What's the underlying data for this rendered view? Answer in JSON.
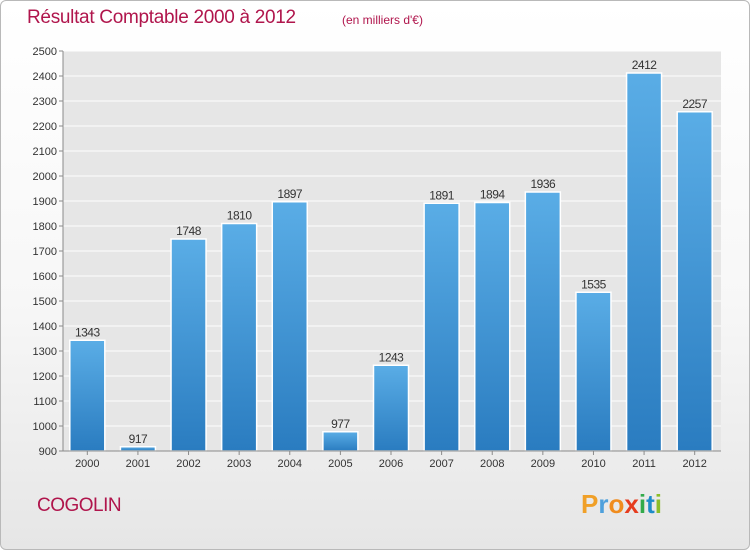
{
  "title": "Résultat Comptable 2000 à 2012",
  "subtitle": "(en milliers d'€)",
  "commune": "COGOLIN",
  "logo": {
    "letters": [
      "P",
      "r",
      "o",
      "x",
      "i",
      "t",
      "i"
    ],
    "colors": [
      "#f0a028",
      "#4ea0dc",
      "#f08c1e",
      "#e63c1e",
      "#32aa4b",
      "#1e8cc8",
      "#8cbe28"
    ]
  },
  "colors": {
    "bar": "#3f95d8",
    "title": "#b0154c",
    "grid": "#ffffff",
    "plot_bg": "#e6e6e6"
  },
  "chart_data": {
    "type": "bar",
    "title": "Résultat Comptable 2000 à 2012",
    "subtitle": "(en milliers d'€)",
    "categories": [
      "2000",
      "2001",
      "2002",
      "2003",
      "2004",
      "2005",
      "2006",
      "2007",
      "2008",
      "2009",
      "2010",
      "2011",
      "2012"
    ],
    "values": [
      1343,
      917,
      1748,
      1810,
      1897,
      977,
      1243,
      1891,
      1894,
      1936,
      1535,
      2412,
      2257
    ],
    "value_labels": [
      "1343",
      "917",
      "1748",
      "1810",
      "1897",
      "977",
      "1243",
      "1891",
      "1894",
      "1936",
      "1535",
      "2412",
      "2257"
    ],
    "ylim": [
      900,
      2500
    ],
    "yticks": [
      900,
      1000,
      1100,
      1200,
      1300,
      1400,
      1500,
      1600,
      1700,
      1800,
      1900,
      2000,
      2100,
      2200,
      2300,
      2400,
      2500
    ],
    "ytick_labels": [
      "900",
      "1000",
      "1100",
      "1200",
      "1300",
      "1400",
      "1500",
      "1600",
      "1700",
      "1800",
      "1900",
      "2000",
      "2100",
      "2200",
      "2300",
      "2400",
      "2500"
    ],
    "xlabel": "",
    "ylabel": "",
    "grid": true,
    "legend": "none"
  }
}
